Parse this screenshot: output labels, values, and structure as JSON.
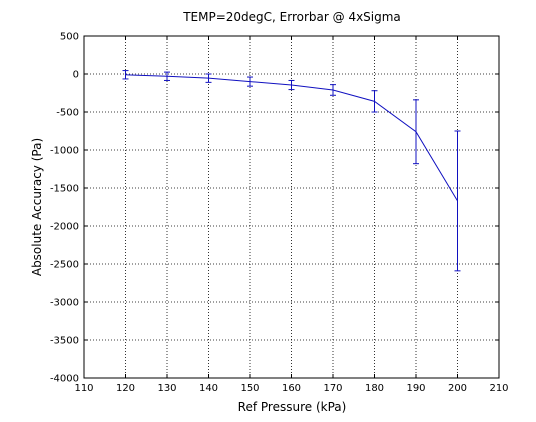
{
  "chart_data": {
    "type": "line",
    "title": "TEMP=20degC, Errorbar @ 4xSigma",
    "xlabel": "Ref Pressure (kPa)",
    "ylabel": "Absolute Accuracy (Pa)",
    "xlim": [
      110,
      210
    ],
    "ylim": [
      -4000,
      500
    ],
    "xticks": [
      110,
      120,
      130,
      140,
      150,
      160,
      170,
      180,
      190,
      200,
      210
    ],
    "yticks": [
      -4000,
      -3500,
      -3000,
      -2500,
      -2000,
      -1500,
      -1000,
      -500,
      0,
      500
    ],
    "grid": true,
    "line_color": "#1010c0",
    "series": [
      {
        "x": [
          120,
          130,
          140,
          150,
          160,
          170,
          180,
          190,
          200
        ],
        "y": [
          -10,
          -30,
          -55,
          -100,
          -145,
          -210,
          -360,
          -760,
          -1670
        ],
        "err": [
          55,
          55,
          55,
          60,
          60,
          70,
          140,
          420,
          920
        ]
      }
    ]
  }
}
